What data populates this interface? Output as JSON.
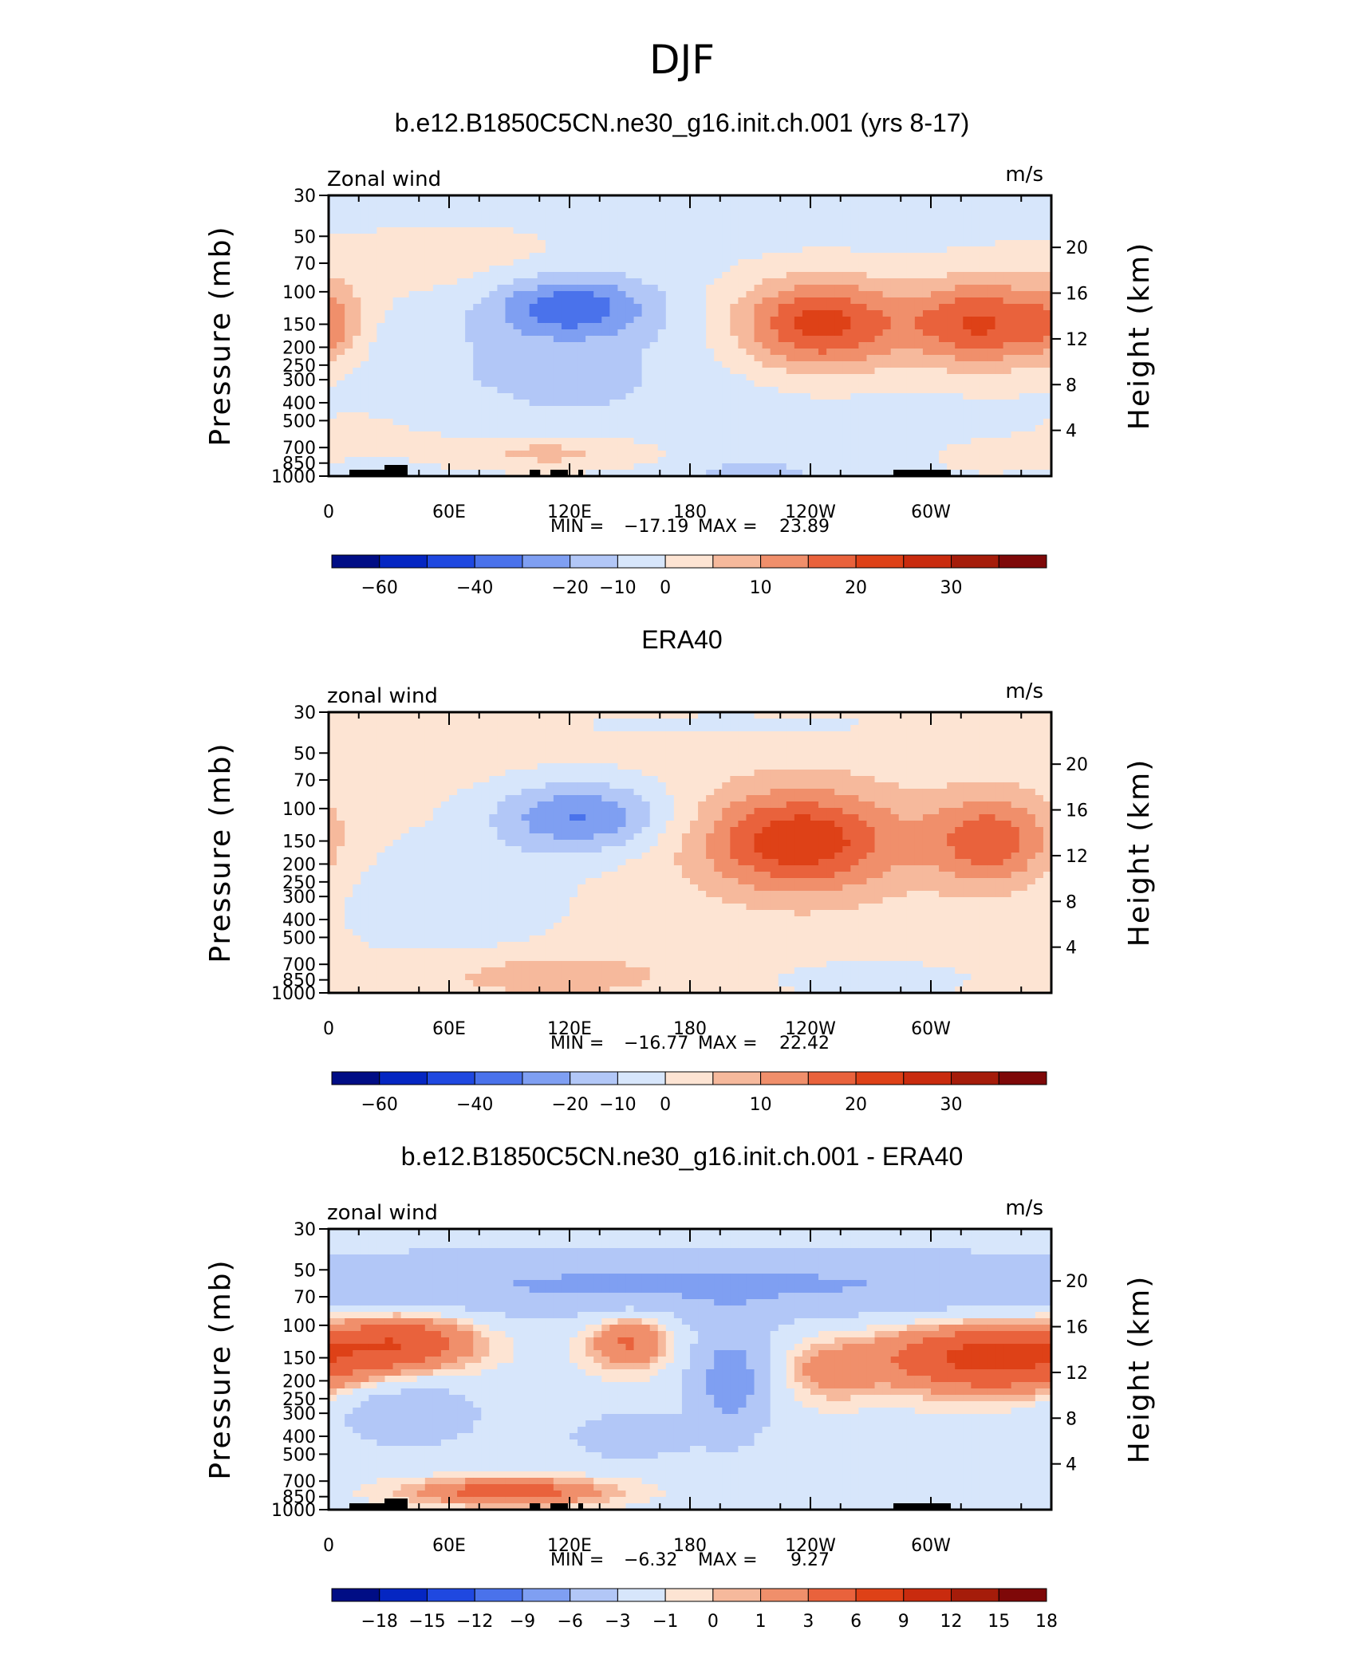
{
  "figure_title": "DJF",
  "chart_data": [
    {
      "type": "heatmap",
      "title": "b.e12.B1850C5CN.ne30_g16.init.ch.001 (yrs 8-17)",
      "variable_label": "Zonal wind",
      "units": "m/s",
      "ylabel": "Pressure (mb)",
      "y2label": "Height (km)",
      "x_ticks": [
        "0",
        "60E",
        "120E",
        "180",
        "120W",
        "60W"
      ],
      "y_ticks": [
        "30",
        "50",
        "70",
        "100",
        "150",
        "200",
        "250",
        "300",
        "400",
        "500",
        "700",
        "850",
        "1000"
      ],
      "y2_ticks": [
        "20",
        "16",
        "12",
        "8",
        "4"
      ],
      "min_label": "MIN =",
      "min": "−17.19",
      "max_label": "MAX =",
      "max": "23.89",
      "colorbar_labels": [
        "−60",
        "−40",
        "−20",
        "−10",
        "0",
        "10",
        "20",
        "30"
      ],
      "colorbar_colors": [
        "#000d85",
        "#0526c2",
        "#1f48e0",
        "#4a72eb",
        "#7f9ff2",
        "#b2c7f7",
        "#d7e6fb",
        "#fde4d3",
        "#f6b99c",
        "#f08f6b",
        "#e9623c",
        "#de4117",
        "#c92b0e",
        "#a51c0a",
        "#7e0808"
      ],
      "features": [
        {
          "lon": 120,
          "p": 120,
          "v": -17,
          "sx": 28,
          "sy": 0.28
        },
        {
          "lon": 110,
          "p": 300,
          "v": -4,
          "sx": 60,
          "sy": 0.55
        },
        {
          "lon": 245,
          "p": 150,
          "v": 23.9,
          "sx": 30,
          "sy": 0.42
        },
        {
          "lon": 325,
          "p": 150,
          "v": 22,
          "sx": 26,
          "sy": 0.4
        },
        {
          "lon": 0,
          "p": 150,
          "v": 9,
          "sx": 12,
          "sy": 0.35
        },
        {
          "lon": 110,
          "p": 750,
          "v": 9,
          "sx": 38,
          "sy": 0.16
        },
        {
          "lon": 60,
          "p": 70,
          "v": 4,
          "sx": 60,
          "sy": 0.4
        },
        {
          "lon": 30,
          "p": 500,
          "v": 3,
          "sx": 40,
          "sy": 0.3
        },
        {
          "lon": 210,
          "p": 950,
          "v": -5,
          "sx": 25,
          "sy": 0.1
        },
        {
          "lon": 330,
          "p": 800,
          "v": 3,
          "sx": 30,
          "sy": 0.2
        }
      ],
      "background": -2,
      "terrain": true
    },
    {
      "type": "heatmap",
      "title": "ERA40",
      "variable_label": "zonal wind",
      "units": "m/s",
      "ylabel": "Pressure (mb)",
      "y2label": "Height (km)",
      "x_ticks": [
        "0",
        "60E",
        "120E",
        "180",
        "120W",
        "60W"
      ],
      "y_ticks": [
        "30",
        "50",
        "70",
        "100",
        "150",
        "200",
        "250",
        "300",
        "400",
        "500",
        "700",
        "850",
        "1000"
      ],
      "y2_ticks": [
        "20",
        "16",
        "12",
        "8",
        "4"
      ],
      "min_label": "MIN =",
      "min": "−16.77",
      "max_label": "MAX =",
      "max": "22.42",
      "colorbar_labels": [
        "−60",
        "−40",
        "−20",
        "−10",
        "0",
        "10",
        "20",
        "30"
      ],
      "colorbar_colors": [
        "#000d85",
        "#0526c2",
        "#1f48e0",
        "#4a72eb",
        "#7f9ff2",
        "#b2c7f7",
        "#d7e6fb",
        "#fde4d3",
        "#f6b99c",
        "#f08f6b",
        "#e9623c",
        "#de4117",
        "#c92b0e",
        "#a51c0a",
        "#7e0808"
      ],
      "features": [
        {
          "lon": 125,
          "p": 110,
          "v": -16.8,
          "sx": 30,
          "sy": 0.32
        },
        {
          "lon": 60,
          "p": 300,
          "v": -5,
          "sx": 45,
          "sy": 0.6
        },
        {
          "lon": 235,
          "p": 150,
          "v": 22.4,
          "sx": 35,
          "sy": 0.45
        },
        {
          "lon": 330,
          "p": 150,
          "v": 17,
          "sx": 22,
          "sy": 0.4
        },
        {
          "lon": 110,
          "p": 800,
          "v": 7,
          "sx": 40,
          "sy": 0.18
        },
        {
          "lon": 270,
          "p": 850,
          "v": -4,
          "sx": 40,
          "sy": 0.2
        },
        {
          "lon": 200,
          "p": 35,
          "v": -4,
          "sx": 60,
          "sy": 0.1
        }
      ],
      "background": 2,
      "terrain": false
    },
    {
      "type": "heatmap",
      "title": "b.e12.B1850C5CN.ne30_g16.init.ch.001 - ERA40",
      "variable_label": "zonal wind",
      "units": "m/s",
      "ylabel": "Pressure (mb)",
      "y2label": "Height (km)",
      "x_ticks": [
        "0",
        "60E",
        "120E",
        "180",
        "120W",
        "60W"
      ],
      "y_ticks": [
        "30",
        "50",
        "70",
        "100",
        "150",
        "200",
        "250",
        "300",
        "400",
        "500",
        "700",
        "850",
        "1000"
      ],
      "y2_ticks": [
        "20",
        "16",
        "12",
        "8",
        "4"
      ],
      "min_label": "MIN =",
      "min": "−6.32",
      "max_label": "MAX =",
      "max": "9.27",
      "colorbar_labels": [
        "−18",
        "−15",
        "−12",
        "−9",
        "−6",
        "−3",
        "−1",
        "0",
        "1",
        "3",
        "6",
        "9",
        "12",
        "15",
        "18"
      ],
      "colorbar_colors": [
        "#000d85",
        "#0526c2",
        "#1f48e0",
        "#4a72eb",
        "#7f9ff2",
        "#b2c7f7",
        "#d7e6fb",
        "#fde4d3",
        "#f6b99c",
        "#f08f6b",
        "#e9623c",
        "#de4117",
        "#c92b0e",
        "#a51c0a",
        "#7e0808"
      ],
      "features": [
        {
          "lon": 180,
          "p": 60,
          "v": -5,
          "sx": 200,
          "sy": 0.3
        },
        {
          "lon": 200,
          "p": 200,
          "v": -6.3,
          "sx": 14,
          "sy": 0.5
        },
        {
          "lon": 40,
          "p": 120,
          "v": 6,
          "sx": 25,
          "sy": 0.25
        },
        {
          "lon": 150,
          "p": 120,
          "v": 5,
          "sx": 15,
          "sy": 0.25
        },
        {
          "lon": 330,
          "p": 150,
          "v": 9,
          "sx": 40,
          "sy": 0.3
        },
        {
          "lon": 90,
          "p": 800,
          "v": 6,
          "sx": 35,
          "sy": 0.12
        },
        {
          "lon": 40,
          "p": 300,
          "v": -4,
          "sx": 25,
          "sy": 0.3
        },
        {
          "lon": 150,
          "p": 400,
          "v": -4,
          "sx": 20,
          "sy": 0.2
        },
        {
          "lon": 250,
          "p": 180,
          "v": 3,
          "sx": 15,
          "sy": 0.25
        }
      ],
      "background": -1.5,
      "terrain": true
    }
  ]
}
